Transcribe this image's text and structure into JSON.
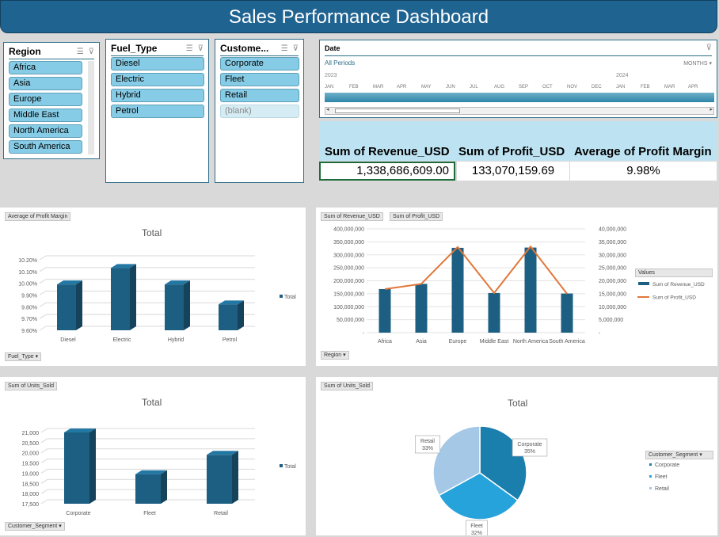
{
  "title": "Sales Performance Dashboard",
  "slicers": {
    "region": {
      "title": "Region",
      "items": [
        "Africa",
        "Asia",
        "Europe",
        "Middle East",
        "North America",
        "South America"
      ]
    },
    "fuel": {
      "title": "Fuel_Type",
      "items": [
        "Diesel",
        "Electric",
        "Hybrid",
        "Petrol"
      ]
    },
    "customer": {
      "title": "Custome...",
      "items": [
        "Corporate",
        "Fleet",
        "Retail",
        "(blank)"
      ]
    }
  },
  "timeline": {
    "title": "Date",
    "all_periods": "All Periods",
    "granularity": "MONTHS",
    "year1": "2023",
    "year2": "2024",
    "months": [
      "JAN",
      "FEB",
      "MAR",
      "APR",
      "MAY",
      "JUN",
      "JUL",
      "AUG",
      "SEP",
      "OCT",
      "NOV",
      "DEC",
      "JAN",
      "FEB",
      "MAR",
      "APR"
    ]
  },
  "kpis": [
    {
      "label": "Sum of Revenue_USD",
      "value": "1,338,686,609.00"
    },
    {
      "label": "Sum of Profit_USD",
      "value": "133,070,159.69"
    },
    {
      "label": "Average of Profit Margin",
      "value": "9.98%"
    }
  ],
  "colors": {
    "bar": "#1c5f82",
    "line": "#e0773a",
    "pie1": "#1b7fae",
    "pie2": "#27a3dc",
    "pie3": "#a5c8e6"
  },
  "chart_data": [
    {
      "type": "bar",
      "field_button": "Average of Profit Margin",
      "axis_button": "Fuel_Type",
      "title": "Total",
      "categories": [
        "Diesel",
        "Electric",
        "Hybrid",
        "Petrol"
      ],
      "series": [
        {
          "name": "Total",
          "values": [
            9.99,
            10.13,
            9.99,
            9.82
          ]
        }
      ],
      "yticks": [
        "9.60%",
        "9.70%",
        "9.80%",
        "9.90%",
        "10.00%",
        "10.10%",
        "10.20%"
      ],
      "ylim": [
        9.6,
        10.2
      ]
    },
    {
      "type": "bar",
      "field_buttons": [
        "Sum of Revenue_USD",
        "Sum of Profit_USD"
      ],
      "axis_button": "Region",
      "legend_title": "Values",
      "categories": [
        "Africa",
        "Asia",
        "Europe",
        "Middle East",
        "North America",
        "South America"
      ],
      "series": [
        {
          "name": "Sum of Revenue_USD",
          "type": "bar",
          "axis": "left",
          "values": [
            168000000,
            188000000,
            327000000,
            153000000,
            328000000,
            151000000
          ]
        },
        {
          "name": "Sum of Profit_USD",
          "type": "line",
          "axis": "right",
          "values": [
            16800000,
            18800000,
            33000000,
            15300000,
            33200000,
            15000000
          ]
        }
      ],
      "yticks_left": [
        "-",
        "50,000,000",
        "100,000,000",
        "150,000,000",
        "200,000,000",
        "250,000,000",
        "300,000,000",
        "350,000,000",
        "400,000,000"
      ],
      "yticks_right": [
        "-",
        "5,000,000",
        "10,000,000",
        "15,000,000",
        "20,000,000",
        "25,000,000",
        "30,000,000",
        "35,000,000",
        "40,000,000"
      ],
      "ylim_left": [
        0,
        400000000
      ],
      "ylim_right": [
        0,
        40000000
      ]
    },
    {
      "type": "bar",
      "field_button": "Sum of Units_Sold",
      "axis_button": "Customer_Segment",
      "title": "Total",
      "categories": [
        "Corporate",
        "Fleet",
        "Retail"
      ],
      "series": [
        {
          "name": "Total",
          "values": [
            21000,
            18950,
            19900
          ]
        }
      ],
      "yticks": [
        "17,500",
        "18,000",
        "18,500",
        "19,000",
        "19,500",
        "20,000",
        "20,500",
        "21,000"
      ],
      "ylim": [
        17500,
        21000
      ]
    },
    {
      "type": "pie",
      "field_button": "Sum of Units_Sold",
      "legend_button": "Customer_Segment",
      "title": "Total",
      "categories": [
        "Corporate",
        "Fleet",
        "Retail"
      ],
      "values": [
        35,
        32,
        33
      ],
      "labels": [
        "35%",
        "32%",
        "33%"
      ]
    }
  ]
}
